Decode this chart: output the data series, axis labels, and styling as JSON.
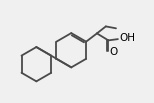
{
  "bg_color": "#f0f0f0",
  "line_color": "#4a4a4a",
  "line_width": 1.3,
  "text_color": "#000000",
  "font_size": 7.5,
  "cooh_label": "OH",
  "o_label": "O",
  "xlim": [
    0,
    11
  ],
  "ylim": [
    0,
    8
  ]
}
